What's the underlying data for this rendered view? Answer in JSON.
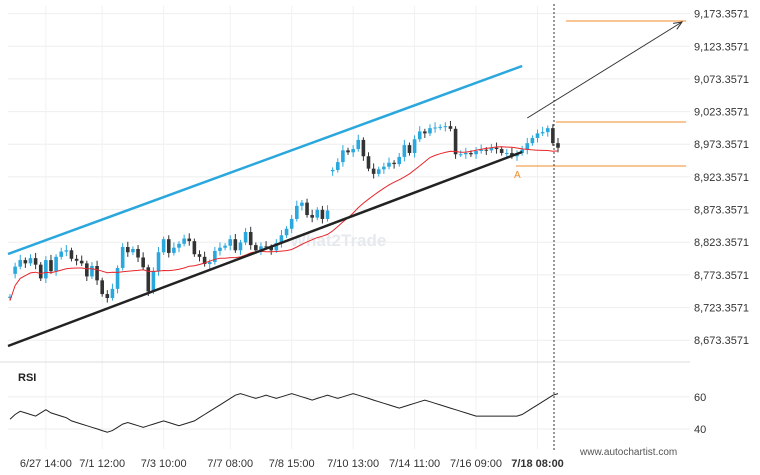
{
  "chart_data": {
    "type": "candlestick",
    "y_ticks": [
      "9,173.3571",
      "9,123.3571",
      "9,073.3571",
      "9,023.3571",
      "8,973.3571",
      "8,923.3571",
      "8,873.3571",
      "8,823.3571",
      "8,773.3571",
      "8,723.3571",
      "8,673.3571"
    ],
    "y_tick_values": [
      9173.3571,
      9123.3571,
      9073.3571,
      9023.3571,
      8973.3571,
      8923.3571,
      8873.3571,
      8823.3571,
      8773.3571,
      8723.3571,
      8673.3571
    ],
    "ylim": [
      8640,
      9185
    ],
    "x_ticks": [
      "6/27 14:00",
      "7/1 12:00",
      "7/3 10:00",
      "7/7 08:00",
      "7/8 15:00",
      "7/10 13:00",
      "7/14 11:00",
      "7/16 09:00",
      "7/18 08:00"
    ],
    "x_tick_index": [
      7,
      18,
      30,
      43,
      55,
      67,
      79,
      91,
      103
    ],
    "n_bars": 108,
    "candles": {
      "close": [
        8740,
        8786,
        8796,
        8791,
        8799,
        8789,
        8768,
        8796,
        8779,
        8801,
        8809,
        8811,
        8798,
        8795,
        8791,
        8771,
        8787,
        8765,
        8744,
        8738,
        8752,
        8784,
        8816,
        8808,
        8813,
        8800,
        8785,
        8748,
        8779,
        8808,
        8828,
        8807,
        8815,
        8821,
        8829,
        8825,
        8805,
        8801,
        8790,
        8793,
        8810,
        8815,
        8818,
        8828,
        8811,
        8823,
        8839,
        8819,
        8811,
        8817,
        8816,
        8811,
        8822,
        8834,
        8844,
        8859,
        8879,
        8884,
        8865,
        8861,
        8873,
        8859,
        8872,
        8934,
        8946,
        8964,
        8961,
        8966,
        8980,
        8955,
        8936,
        8928,
        8935,
        8939,
        8945,
        8943,
        8954,
        8972,
        8960,
        8981,
        8993,
        8990,
        8998,
        8999,
        9000,
        9001,
        8997,
        8958,
        8958,
        8960,
        8958,
        8963,
        8965,
        8964,
        8968,
        8966,
        8960,
        8960,
        8955,
        8960,
        8965,
        8975,
        8983,
        8990,
        8992,
        8998,
        8975,
        8968
      ],
      "open": [
        8738,
        8775,
        8786,
        8796,
        8791,
        8799,
        8789,
        8768,
        8796,
        8779,
        8801,
        8809,
        8811,
        8798,
        8795,
        8791,
        8771,
        8787,
        8765,
        8744,
        8738,
        8752,
        8784,
        8816,
        8808,
        8813,
        8800,
        8785,
        8748,
        8779,
        8808,
        8828,
        8807,
        8815,
        8821,
        8829,
        8825,
        8805,
        8801,
        8790,
        8793,
        8810,
        8815,
        8818,
        8828,
        8811,
        8823,
        8839,
        8819,
        8811,
        8817,
        8816,
        8811,
        8822,
        8834,
        8844,
        8859,
        8879,
        8884,
        8865,
        8861,
        8873,
        8859,
        8932,
        8934,
        8946,
        8964,
        8961,
        8966,
        8980,
        8955,
        8936,
        8928,
        8935,
        8939,
        8945,
        8943,
        8954,
        8972,
        8960,
        8981,
        8993,
        8990,
        8998,
        8999,
        9000,
        9001,
        8997,
        8958,
        8958,
        8960,
        8958,
        8963,
        8965,
        8964,
        8968,
        8966,
        8960,
        8960,
        8955,
        8960,
        8965,
        8975,
        8983,
        8990,
        8992,
        8998,
        8975
      ]
    },
    "indicator": {
      "name": "RSI",
      "ticks": [
        "60",
        "40"
      ],
      "tick_values": [
        60,
        40
      ],
      "ylim": [
        30,
        68
      ],
      "values": [
        46,
        49,
        51,
        50,
        49,
        48,
        50,
        52,
        50,
        49,
        48,
        47,
        45,
        44,
        43,
        42,
        41,
        40,
        39,
        38,
        39,
        41,
        43,
        44,
        43,
        42,
        41,
        42,
        43,
        44,
        45,
        44,
        43,
        42,
        43,
        44,
        45,
        47,
        49,
        51,
        53,
        55,
        57,
        59,
        61,
        62,
        61,
        60,
        59,
        60,
        61,
        60,
        59,
        60,
        61,
        62,
        61,
        60,
        59,
        58,
        59,
        60,
        61,
        60,
        59,
        60,
        61,
        62,
        61,
        60,
        59,
        58,
        57,
        56,
        55,
        54,
        53,
        54,
        55,
        56,
        57,
        58,
        57,
        56,
        55,
        54,
        53,
        52,
        51,
        50,
        49,
        48,
        48,
        48,
        48,
        48,
        48,
        48,
        48,
        48,
        49,
        51,
        53,
        55,
        57,
        59,
        61,
        62
      ]
    },
    "pattern": {
      "label": "A",
      "colors": {
        "resistance": "#2aa7dd",
        "support": "#222222",
        "levels": "#f28c28",
        "ma": "#e8262b",
        "bull": "#2aa7dd",
        "bear": "#333333",
        "projection": "#333333"
      }
    },
    "watermark": "What2Trade",
    "footer": "www.autochartist.com"
  }
}
